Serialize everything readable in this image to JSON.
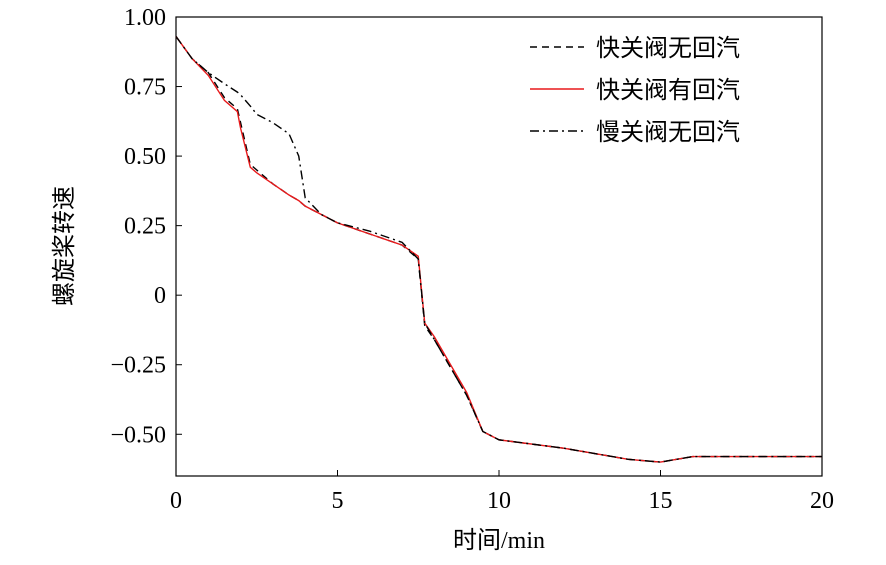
{
  "chart_data": {
    "type": "line",
    "xlabel": "时间/min",
    "ylabel": "螺旋桨转速",
    "x": [
      0,
      0.5,
      1,
      1.5,
      1.9,
      2,
      2.3,
      2.5,
      3,
      3.5,
      3.8,
      4,
      4.5,
      5,
      6,
      7,
      7.5,
      7.7,
      8,
      9,
      9.5,
      10,
      12,
      14,
      15,
      16,
      20
    ],
    "series": [
      {
        "name": "快关阀无回汽",
        "color": "#000000",
        "linestyle": "dashed",
        "values": [
          0.93,
          0.85,
          0.8,
          0.71,
          0.67,
          0.62,
          0.47,
          0.45,
          0.4,
          0.36,
          0.34,
          0.32,
          0.29,
          0.26,
          0.22,
          0.18,
          0.13,
          -0.11,
          -0.16,
          -0.36,
          -0.49,
          -0.52,
          -0.55,
          -0.59,
          -0.6,
          -0.58,
          -0.58
        ]
      },
      {
        "name": "快关阀有回汽",
        "color": "#e8191b",
        "linestyle": "solid",
        "values": [
          0.93,
          0.85,
          0.79,
          0.7,
          0.66,
          0.6,
          0.46,
          0.44,
          0.4,
          0.36,
          0.34,
          0.32,
          0.29,
          0.26,
          0.22,
          0.18,
          0.14,
          -0.1,
          -0.15,
          -0.35,
          -0.49,
          -0.52,
          -0.55,
          -0.59,
          -0.6,
          -0.58,
          -0.58
        ]
      },
      {
        "name": "慢关阀无回汽",
        "color": "#000000",
        "linestyle": "dashdot",
        "values": [
          0.93,
          0.85,
          0.8,
          0.76,
          0.73,
          0.72,
          0.68,
          0.65,
          0.62,
          0.58,
          0.5,
          0.35,
          0.29,
          0.26,
          0.23,
          0.19,
          0.13,
          -0.1,
          -0.16,
          -0.36,
          -0.49,
          -0.52,
          -0.55,
          -0.59,
          -0.6,
          -0.58,
          -0.58
        ]
      }
    ],
    "xlim": [
      0,
      20
    ],
    "xticks": [
      0,
      5,
      10,
      15,
      20
    ],
    "ylim": [
      -0.65,
      1.0
    ],
    "yticks": [
      {
        "value": 1.0,
        "label": "1.00"
      },
      {
        "value": 0.75,
        "label": "0.75"
      },
      {
        "value": 0.5,
        "label": "0.50"
      },
      {
        "value": 0.25,
        "label": "0.25"
      },
      0,
      {
        "value": -0.25,
        "label": "−0.25"
      },
      {
        "value": -0.5,
        "label": "−0.50"
      }
    ],
    "legend": "upper right",
    "grid": false
  }
}
